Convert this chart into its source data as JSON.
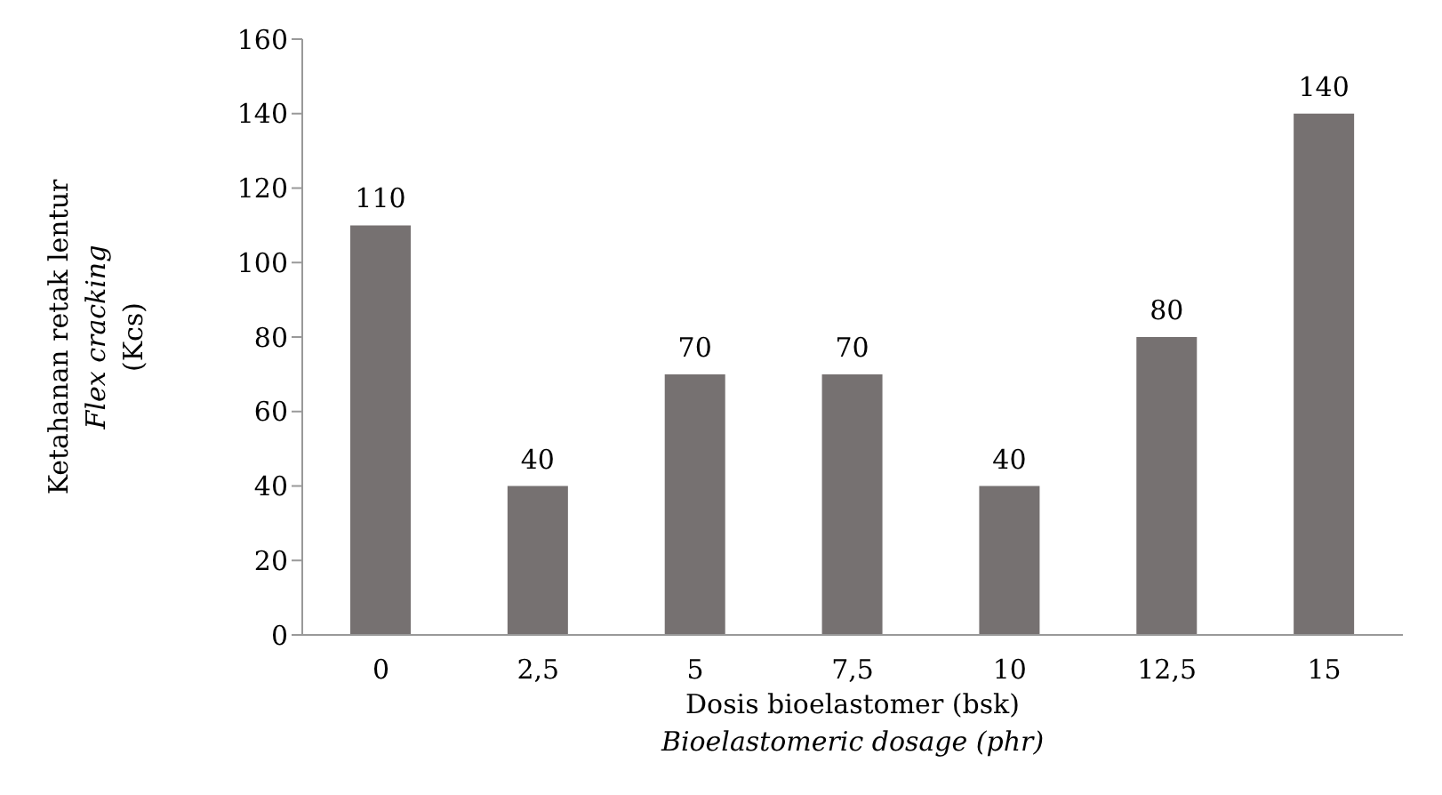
{
  "chart_data": {
    "type": "bar",
    "categories": [
      "0",
      "2,5",
      "5",
      "7,5",
      "10",
      "12,5",
      "15"
    ],
    "values": [
      110,
      40,
      70,
      70,
      40,
      80,
      140
    ],
    "color": "#767171",
    "xlabel": "Dosis bioelastomer (bsk)\nBioelastomeric dosage (phr)",
    "ylabel": "Ketahanan retak lentur\nFlex cracking\n(Kcs)",
    "ylim": [
      0,
      160
    ],
    "yticks": [
      0,
      20,
      40,
      60,
      80,
      100,
      120,
      140,
      160
    ],
    "grid": false,
    "data_labels": true,
    "legend": false
  }
}
